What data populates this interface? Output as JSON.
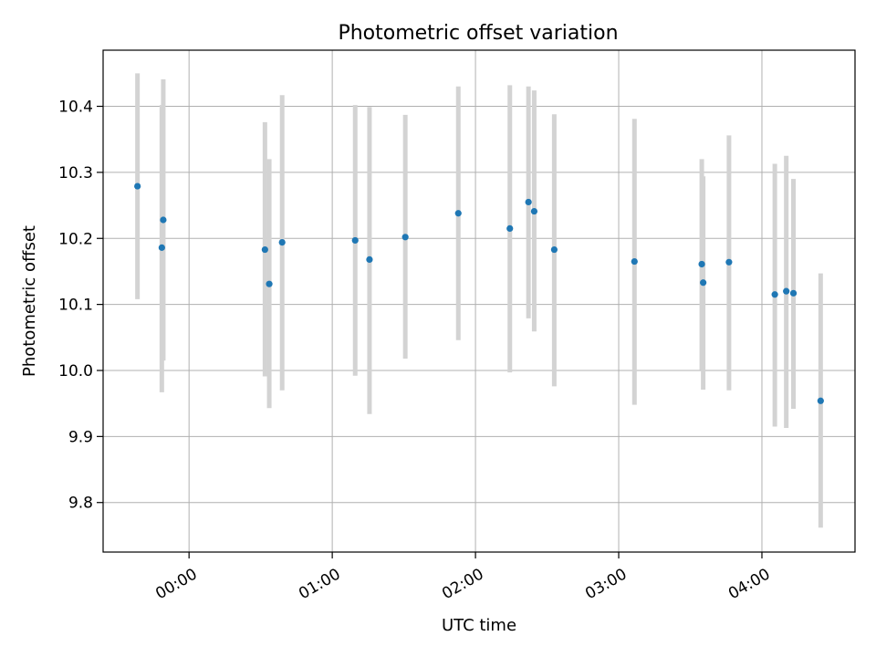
{
  "chart_data": {
    "type": "scatter",
    "title": "Photometric offset variation",
    "xlabel": "UTC time",
    "ylabel": "Photometric offset",
    "x_unit": "hours",
    "xlim": [
      -0.6,
      4.65
    ],
    "ylim": [
      9.725,
      10.485
    ],
    "x_ticks": [
      {
        "value": 0,
        "label": "00:00"
      },
      {
        "value": 1,
        "label": "01:00"
      },
      {
        "value": 2,
        "label": "02:00"
      },
      {
        "value": 3,
        "label": "03:00"
      },
      {
        "value": 4,
        "label": "04:00"
      }
    ],
    "y_ticks": [
      {
        "value": 9.8,
        "label": "9.8"
      },
      {
        "value": 9.9,
        "label": "9.9"
      },
      {
        "value": 10.0,
        "label": "10.0"
      },
      {
        "value": 10.1,
        "label": "10.1"
      },
      {
        "value": 10.2,
        "label": "10.2"
      },
      {
        "value": 10.3,
        "label": "10.3"
      },
      {
        "value": 10.4,
        "label": "10.4"
      }
    ],
    "grid": true,
    "x_tick_rotation_deg": 30,
    "colors": {
      "point": "#1f77b4",
      "errorbar": "#d3d3d3",
      "grid": "#b0b0b0"
    },
    "points": [
      {
        "x": -0.36,
        "y": 10.279,
        "lo": 10.108,
        "hi": 10.45
      },
      {
        "x": -0.19,
        "y": 10.186,
        "lo": 9.967,
        "hi": 10.402
      },
      {
        "x": -0.18,
        "y": 10.228,
        "lo": 10.015,
        "hi": 10.441
      },
      {
        "x": 0.53,
        "y": 10.183,
        "lo": 9.991,
        "hi": 10.376
      },
      {
        "x": 0.56,
        "y": 10.131,
        "lo": 9.943,
        "hi": 10.32
      },
      {
        "x": 0.65,
        "y": 10.194,
        "lo": 9.97,
        "hi": 10.417
      },
      {
        "x": 1.16,
        "y": 10.197,
        "lo": 9.992,
        "hi": 10.402
      },
      {
        "x": 1.26,
        "y": 10.168,
        "lo": 9.934,
        "hi": 10.399
      },
      {
        "x": 1.51,
        "y": 10.202,
        "lo": 10.018,
        "hi": 10.387
      },
      {
        "x": 1.88,
        "y": 10.238,
        "lo": 10.046,
        "hi": 10.43
      },
      {
        "x": 2.24,
        "y": 10.215,
        "lo": 9.997,
        "hi": 10.432
      },
      {
        "x": 2.37,
        "y": 10.255,
        "lo": 10.079,
        "hi": 10.43
      },
      {
        "x": 2.41,
        "y": 10.241,
        "lo": 10.059,
        "hi": 10.424
      },
      {
        "x": 2.55,
        "y": 10.183,
        "lo": 9.976,
        "hi": 10.388
      },
      {
        "x": 3.11,
        "y": 10.165,
        "lo": 9.948,
        "hi": 10.381
      },
      {
        "x": 3.58,
        "y": 10.161,
        "lo": 10.001,
        "hi": 10.32
      },
      {
        "x": 3.59,
        "y": 10.133,
        "lo": 9.971,
        "hi": 10.294
      },
      {
        "x": 3.77,
        "y": 10.164,
        "lo": 9.97,
        "hi": 10.356
      },
      {
        "x": 4.09,
        "y": 10.115,
        "lo": 9.915,
        "hi": 10.313
      },
      {
        "x": 4.17,
        "y": 10.12,
        "lo": 9.913,
        "hi": 10.325
      },
      {
        "x": 4.22,
        "y": 10.117,
        "lo": 9.942,
        "hi": 10.29
      },
      {
        "x": 4.41,
        "y": 9.954,
        "lo": 9.762,
        "hi": 10.147
      }
    ]
  }
}
